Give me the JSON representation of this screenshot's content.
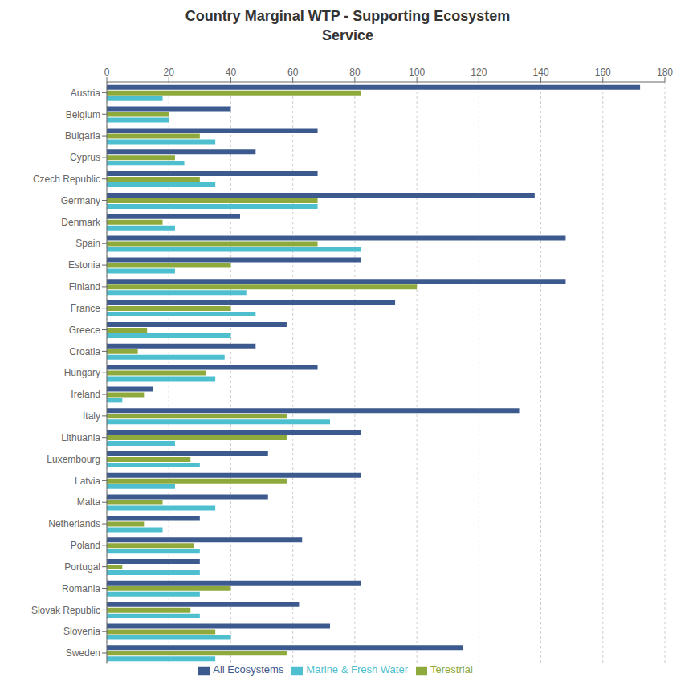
{
  "chart_data": {
    "type": "bar",
    "orientation": "horizontal",
    "title": "Country Marginal WTP - Supporting Ecosystem\nService",
    "categories": [
      "Austria",
      "Belgium",
      "Bulgaria",
      "Cyprus",
      "Czech Republic",
      "Germany",
      "Denmark",
      "Spain",
      "Estonia",
      "Finland",
      "France",
      "Greece",
      "Croatia",
      "Hungary",
      "Ireland",
      "Italy",
      "Lithuania",
      "Luxembourg",
      "Latvia",
      "Malta",
      "Netherlands",
      "Poland",
      "Portugal",
      "Romania",
      "Slovak Republic",
      "Slovenia",
      "Sweden"
    ],
    "series": [
      {
        "name": "All Ecosystems",
        "color": "#3d5a8e",
        "values": [
          172,
          40,
          68,
          48,
          68,
          138,
          43,
          148,
          82,
          148,
          93,
          58,
          48,
          68,
          15,
          133,
          82,
          52,
          82,
          52,
          30,
          63,
          30,
          82,
          62,
          72,
          115
        ]
      },
      {
        "name": "Terestrial",
        "color": "#8faa3c",
        "values": [
          82,
          20,
          30,
          22,
          30,
          68,
          18,
          68,
          40,
          100,
          40,
          13,
          10,
          32,
          12,
          58,
          58,
          27,
          58,
          18,
          12,
          28,
          5,
          40,
          27,
          35,
          58
        ]
      },
      {
        "name": "Marine & Fresh Water",
        "color": "#4dbfcf",
        "values": [
          18,
          20,
          35,
          25,
          35,
          68,
          22,
          82,
          22,
          45,
          48,
          40,
          38,
          35,
          5,
          72,
          22,
          30,
          22,
          35,
          18,
          30,
          30,
          30,
          30,
          40,
          35
        ]
      }
    ],
    "xlim": [
      0,
      180
    ],
    "xticks": [
      0,
      20,
      40,
      60,
      80,
      100,
      120,
      140,
      160,
      180
    ],
    "grid": true,
    "legend": "bottom"
  }
}
